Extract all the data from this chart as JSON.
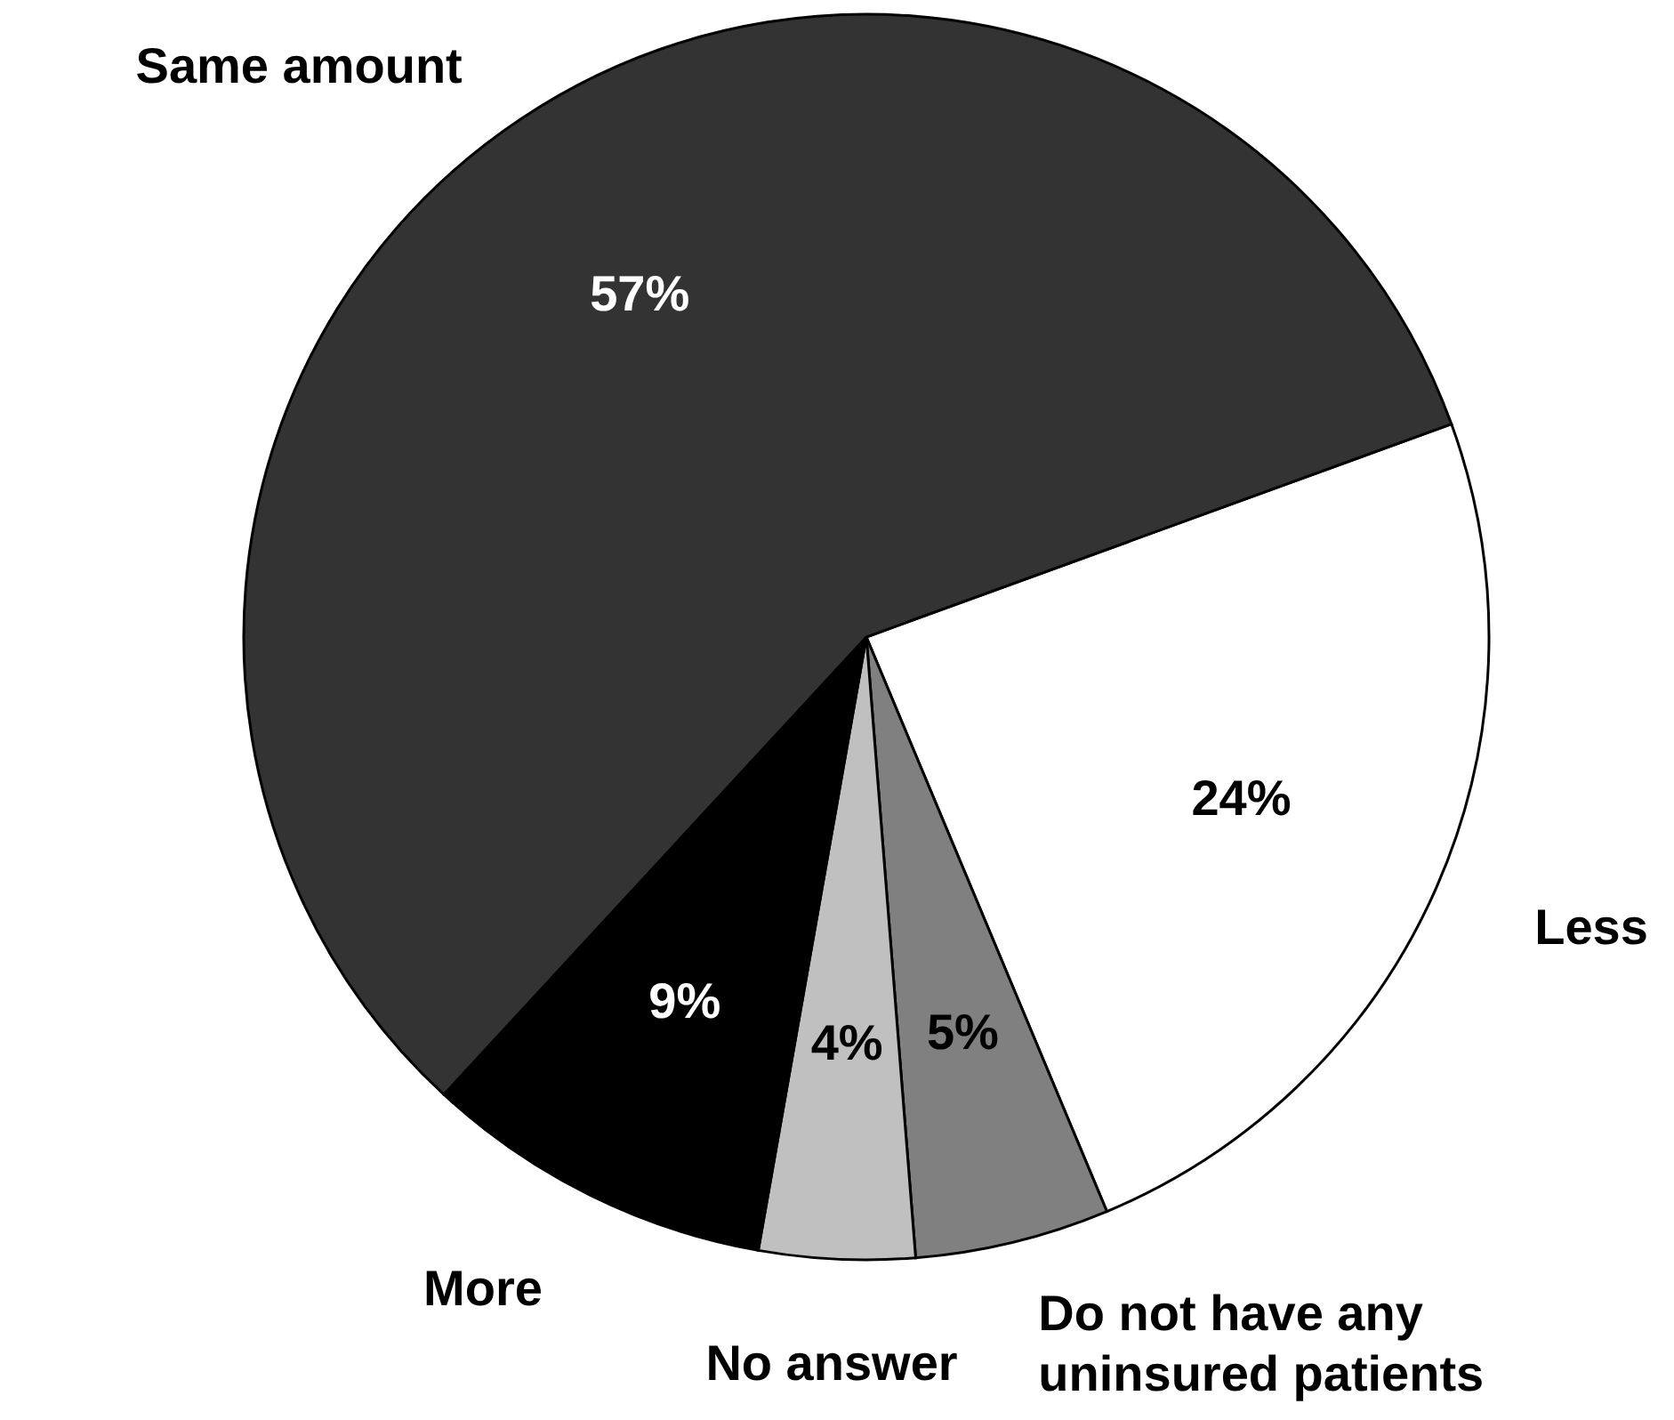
{
  "chart_data": {
    "type": "pie",
    "categories": [
      "Less",
      "Do not have any uninsured patients",
      "No answer",
      "More",
      "Same amount"
    ],
    "values": [
      24,
      5,
      4,
      9,
      57
    ],
    "colors": [
      "#ffffff",
      "#808080",
      "#c0c0c0",
      "#000000",
      "#333333"
    ],
    "value_labels": [
      "24%",
      "5%",
      "4%",
      "9%",
      "57%"
    ]
  }
}
